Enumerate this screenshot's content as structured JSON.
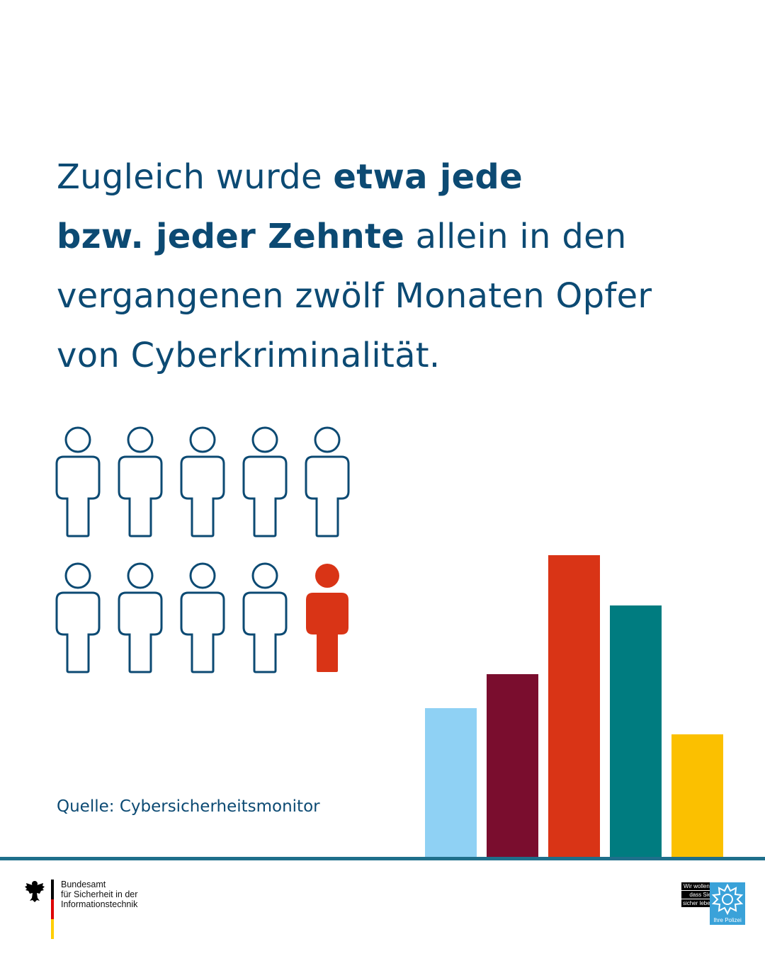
{
  "headline": {
    "part1": "Zugleich wurde ",
    "bold1": "etwa jede",
    "bold2": "bzw. jeder Zehnte",
    "part2": " allein in den",
    "line3": "vergangenen zwölf Monaten Opfer",
    "line4": "von Cyberkriminalität."
  },
  "pictogram": {
    "total": 10,
    "highlighted": 1,
    "outline_color": "#0c4a73",
    "highlight_color": "#d93416"
  },
  "source": "Quelle: Cybersicherheitsmonitor",
  "decor_bars": {
    "values": [
      212,
      260,
      428,
      357,
      175
    ],
    "colors": [
      "#8fd1f4",
      "#7a0d2e",
      "#d93416",
      "#007c80",
      "#fbc000"
    ]
  },
  "footer": {
    "bsi_lines": [
      "Bundesamt",
      "für Sicherheit in der",
      "Informationstechnik"
    ],
    "police_slogan": [
      "Wir wollen,",
      "dass Sie",
      "sicher leben."
    ],
    "police_tag": "Ihre Polizei",
    "flag_colors": [
      "#000000",
      "#dd0000",
      "#ffce00"
    ],
    "baseline_color": "#1f6f8b"
  }
}
